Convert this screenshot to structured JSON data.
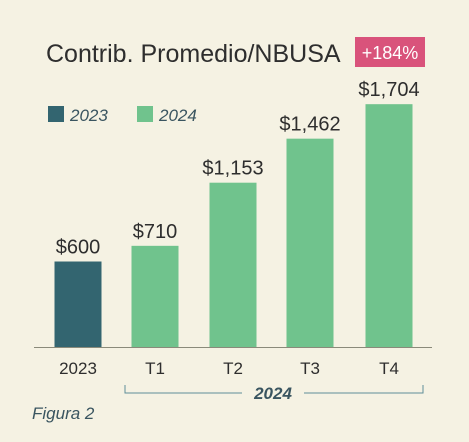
{
  "figure_caption": "Figura 2",
  "badge": {
    "text": "+184%",
    "color": "#d9537b"
  },
  "chart_data": {
    "type": "bar",
    "title": "Contrib. Promedio/NBUSA",
    "categories": [
      "2023",
      "T1",
      "T2",
      "T3",
      "T4"
    ],
    "values": [
      600,
      710,
      1153,
      1462,
      1704
    ],
    "value_labels": [
      "$600",
      "$710",
      "$1,153",
      "$1,462",
      "$1,704"
    ],
    "series_of_category": [
      "2023",
      "2024",
      "2024",
      "2024",
      "2024"
    ],
    "legend": [
      {
        "name": "2023",
        "color": "#336570"
      },
      {
        "name": "2024",
        "color": "#70c38d"
      }
    ],
    "group_label": "2024",
    "xlabel": "",
    "ylabel": "",
    "ylim": [
      0,
      1800
    ],
    "grid": false,
    "legend_position": "top-left"
  }
}
